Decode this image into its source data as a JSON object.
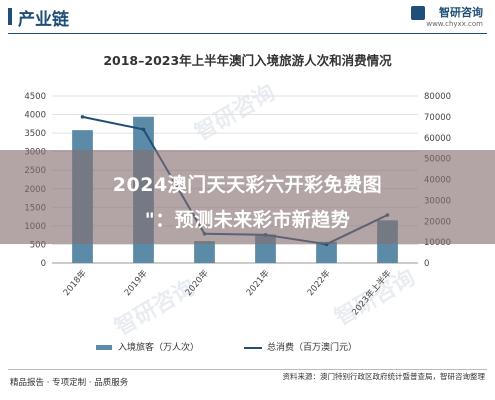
{
  "header": {
    "section": "产业链",
    "brand": "智研咨询",
    "url": "www.chyxx.com"
  },
  "chart_data": {
    "type": "bar",
    "title": "2018–2023年上半年澳门入境旅游人次和消费情况",
    "categories": [
      "2018年",
      "2019年",
      "2020年",
      "2021年",
      "2022年",
      "2023年上半年"
    ],
    "left_axis": {
      "range": [
        0,
        4500
      ],
      "ticks": [
        "0",
        "500",
        "1000",
        "1500",
        "2000",
        "2500",
        "3000",
        "3500",
        "4000",
        "4500"
      ]
    },
    "right_axis": {
      "range": [
        0,
        80000
      ],
      "ticks": [
        "0",
        "10000",
        "20000",
        "30000",
        "40000",
        "50000",
        "60000",
        "70000",
        "80000"
      ]
    },
    "series": [
      {
        "name": "入境旅客（万人次）",
        "kind": "bar",
        "axis": "left",
        "values": [
          3580,
          3940,
          590,
          770,
          570,
          1150
        ]
      },
      {
        "name": "总消费（百万澳门元）",
        "kind": "line",
        "axis": "right",
        "values": [
          70000,
          64000,
          14000,
          13500,
          9000,
          23000
        ]
      }
    ],
    "colors": {
      "bar": "#5b8ba6",
      "line": "#1f4e79"
    },
    "legend": "bottom"
  },
  "overlay": {
    "line1": "2024澳门天天彩六开彩免费图",
    "line2": "\"：预测未来彩市新趋势"
  },
  "footer": {
    "left": "精品报告 · 专项定制 · 品质服务",
    "right": "资料来源：澳门特别行政区政府统计暨普查局，智研咨询整理"
  },
  "watermark": "智研咨询"
}
